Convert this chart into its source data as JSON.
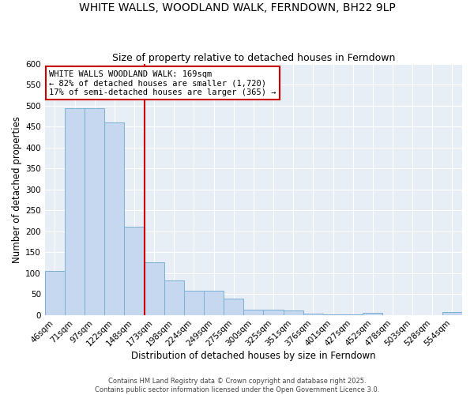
{
  "title": "WHITE WALLS, WOODLAND WALK, FERNDOWN, BH22 9LP",
  "subtitle": "Size of property relative to detached houses in Ferndown",
  "xlabel": "Distribution of detached houses by size in Ferndown",
  "ylabel": "Number of detached properties",
  "categories": [
    "46sqm",
    "71sqm",
    "97sqm",
    "122sqm",
    "148sqm",
    "173sqm",
    "198sqm",
    "224sqm",
    "249sqm",
    "275sqm",
    "300sqm",
    "325sqm",
    "351sqm",
    "376sqm",
    "401sqm",
    "427sqm",
    "452sqm",
    "478sqm",
    "503sqm",
    "528sqm",
    "554sqm"
  ],
  "values": [
    105,
    493,
    493,
    460,
    210,
    125,
    82,
    57,
    57,
    38,
    13,
    13,
    10,
    3,
    2,
    2,
    5,
    0,
    0,
    0,
    6
  ],
  "bar_color": "#c5d8ef",
  "bar_edge_color": "#7bafd4",
  "vline_color": "#cc0000",
  "annotation_text": "WHITE WALLS WOODLAND WALK: 169sqm\n← 82% of detached houses are smaller (1,720)\n17% of semi-detached houses are larger (365) →",
  "annotation_box_color": "white",
  "annotation_box_edge_color": "#cc0000",
  "ylim": [
    0,
    600
  ],
  "yticks": [
    0,
    50,
    100,
    150,
    200,
    250,
    300,
    350,
    400,
    450,
    500,
    550,
    600
  ],
  "background_color": "#e8eef5",
  "footer": "Contains HM Land Registry data © Crown copyright and database right 2025.\nContains public sector information licensed under the Open Government Licence 3.0.",
  "title_fontsize": 10,
  "subtitle_fontsize": 9,
  "xlabel_fontsize": 8.5,
  "ylabel_fontsize": 8.5,
  "tick_fontsize": 7.5,
  "footer_fontsize": 6.0
}
